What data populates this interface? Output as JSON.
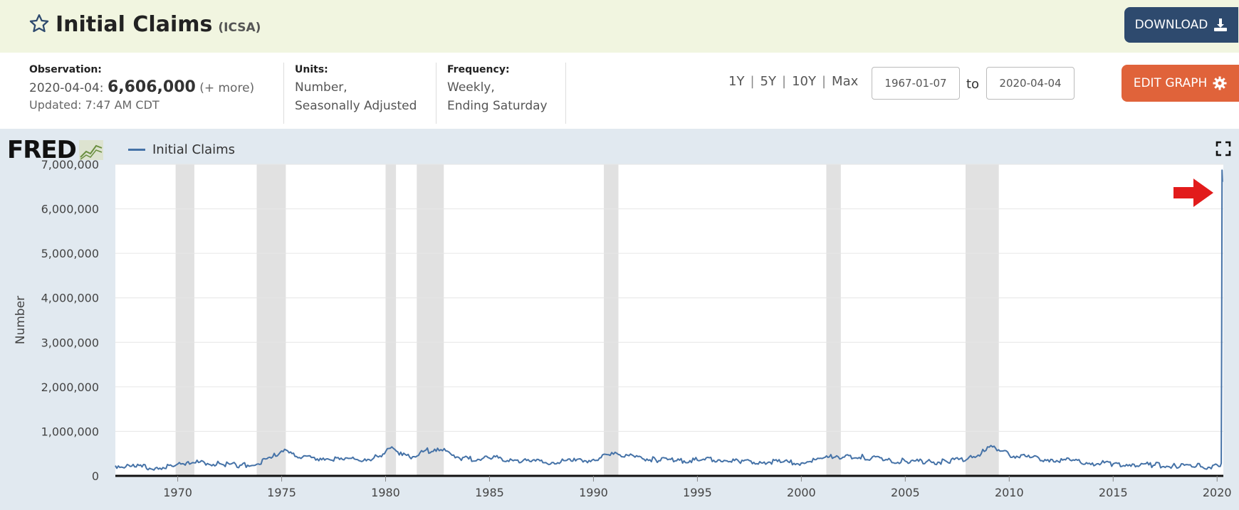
{
  "header": {
    "title": "Initial Claims",
    "series_id": "(ICSA)",
    "download_label": "DOWNLOAD"
  },
  "info": {
    "observation_label": "Observation:",
    "observation_date": "2020-04-04:",
    "observation_value": "6,606,000",
    "observation_more": "(+ more)",
    "updated": "Updated: 7:47 AM CDT",
    "units_label": "Units:",
    "units_line1": "Number,",
    "units_line2": "Seasonally Adjusted",
    "frequency_label": "Frequency:",
    "frequency_line1": "Weekly,",
    "frequency_line2": "Ending Saturday"
  },
  "ranges": [
    "1Y",
    "5Y",
    "10Y",
    "Max"
  ],
  "date_from": "1967-01-07",
  "to_label": "to",
  "date_to": "2020-04-04",
  "edit_label": "EDIT GRAPH",
  "logo_text": "FRED",
  "legend": "Initial Claims",
  "colors": {
    "series": "#4572a7",
    "recession": "#e1e1e1",
    "download": "#2e4a6e",
    "edit": "#e0633a",
    "arrow": "#e21b1b"
  },
  "chart_data": {
    "type": "line",
    "ylabel": "Number",
    "ylim": [
      0,
      7000000
    ],
    "yticks": [
      0,
      1000000,
      2000000,
      3000000,
      4000000,
      5000000,
      6000000,
      7000000
    ],
    "ytick_labels": [
      "0",
      "1,000,000",
      "2,000,000",
      "3,000,000",
      "4,000,000",
      "5,000,000",
      "6,000,000",
      "7,000,000"
    ],
    "xlim": [
      1967.0,
      2020.3
    ],
    "xticks": [
      1970,
      1975,
      1980,
      1985,
      1990,
      1995,
      2000,
      2005,
      2010,
      2015,
      2020
    ],
    "recessions": [
      [
        1969.9,
        1970.8
      ],
      [
        1973.8,
        1975.2
      ],
      [
        1980.0,
        1980.5
      ],
      [
        1981.5,
        1982.8
      ],
      [
        1990.5,
        1991.2
      ],
      [
        2001.2,
        2001.9
      ],
      [
        2007.9,
        2009.5
      ]
    ],
    "series": [
      {
        "name": "Initial Claims",
        "points": [
          [
            1967.0,
            230000
          ],
          [
            1968.0,
            200000
          ],
          [
            1969.0,
            190000
          ],
          [
            1969.8,
            210000
          ],
          [
            1970.5,
            320000
          ],
          [
            1971.0,
            300000
          ],
          [
            1972.0,
            280000
          ],
          [
            1973.0,
            240000
          ],
          [
            1973.8,
            260000
          ],
          [
            1974.5,
            400000
          ],
          [
            1975.0,
            560000
          ],
          [
            1975.5,
            500000
          ],
          [
            1976.0,
            420000
          ],
          [
            1977.0,
            400000
          ],
          [
            1978.0,
            360000
          ],
          [
            1979.0,
            380000
          ],
          [
            1979.8,
            430000
          ],
          [
            1980.3,
            650000
          ],
          [
            1980.8,
            460000
          ],
          [
            1981.3,
            430000
          ],
          [
            1981.8,
            540000
          ],
          [
            1982.5,
            620000
          ],
          [
            1982.9,
            560000
          ],
          [
            1983.5,
            420000
          ],
          [
            1984.0,
            380000
          ],
          [
            1985.0,
            400000
          ],
          [
            1986.0,
            380000
          ],
          [
            1987.0,
            320000
          ],
          [
            1988.0,
            300000
          ],
          [
            1989.0,
            330000
          ],
          [
            1990.0,
            370000
          ],
          [
            1990.8,
            460000
          ],
          [
            1991.2,
            480000
          ],
          [
            1992.0,
            420000
          ],
          [
            1993.0,
            360000
          ],
          [
            1994.0,
            340000
          ],
          [
            1995.0,
            350000
          ],
          [
            1996.0,
            360000
          ],
          [
            1997.0,
            320000
          ],
          [
            1998.0,
            320000
          ],
          [
            1999.0,
            300000
          ],
          [
            2000.0,
            290000
          ],
          [
            2001.0,
            390000
          ],
          [
            2001.7,
            450000
          ],
          [
            2002.0,
            420000
          ],
          [
            2003.0,
            420000
          ],
          [
            2004.0,
            350000
          ],
          [
            2005.0,
            330000
          ],
          [
            2006.0,
            310000
          ],
          [
            2007.0,
            320000
          ],
          [
            2008.0,
            380000
          ],
          [
            2008.8,
            550000
          ],
          [
            2009.2,
            650000
          ],
          [
            2009.7,
            560000
          ],
          [
            2010.0,
            470000
          ],
          [
            2011.0,
            410000
          ],
          [
            2012.0,
            370000
          ],
          [
            2013.0,
            340000
          ],
          [
            2014.0,
            290000
          ],
          [
            2015.0,
            270000
          ],
          [
            2016.0,
            260000
          ],
          [
            2017.0,
            240000
          ],
          [
            2018.0,
            220000
          ],
          [
            2019.0,
            215000
          ],
          [
            2020.15,
            211000
          ],
          [
            2020.2,
            282000
          ],
          [
            2020.22,
            3307000
          ],
          [
            2020.24,
            6867000
          ],
          [
            2020.26,
            6606000
          ]
        ]
      }
    ]
  }
}
